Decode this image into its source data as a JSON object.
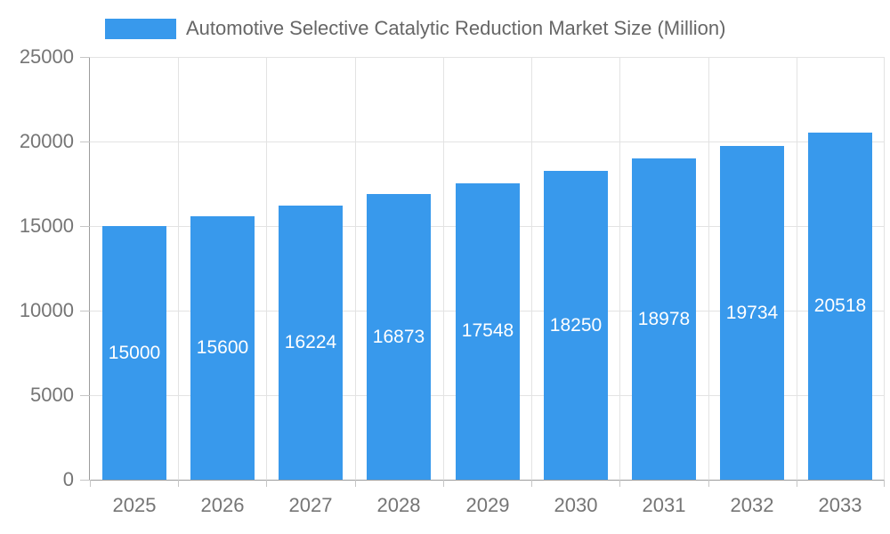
{
  "legend": {
    "label": "Automotive Selective Catalytic Reduction Market Size (Million)"
  },
  "chart_data": {
    "type": "bar",
    "title": "Automotive Selective Catalytic Reduction Market Size (Million)",
    "categories": [
      "2025",
      "2026",
      "2027",
      "2028",
      "2029",
      "2030",
      "2031",
      "2032",
      "2033"
    ],
    "values": [
      15000,
      15600,
      16224,
      16873,
      17548,
      18250,
      18978,
      19734,
      20518
    ],
    "xlabel": "",
    "ylabel": "",
    "ylim": [
      0,
      25000
    ],
    "y_ticks": [
      0,
      5000,
      10000,
      15000,
      20000,
      25000
    ],
    "grid": true,
    "legend_position": "top",
    "bar_color": "#3899EC",
    "value_label_color": "#FFFFFF",
    "axis_text_color": "#757575",
    "title_color": "#666666"
  }
}
